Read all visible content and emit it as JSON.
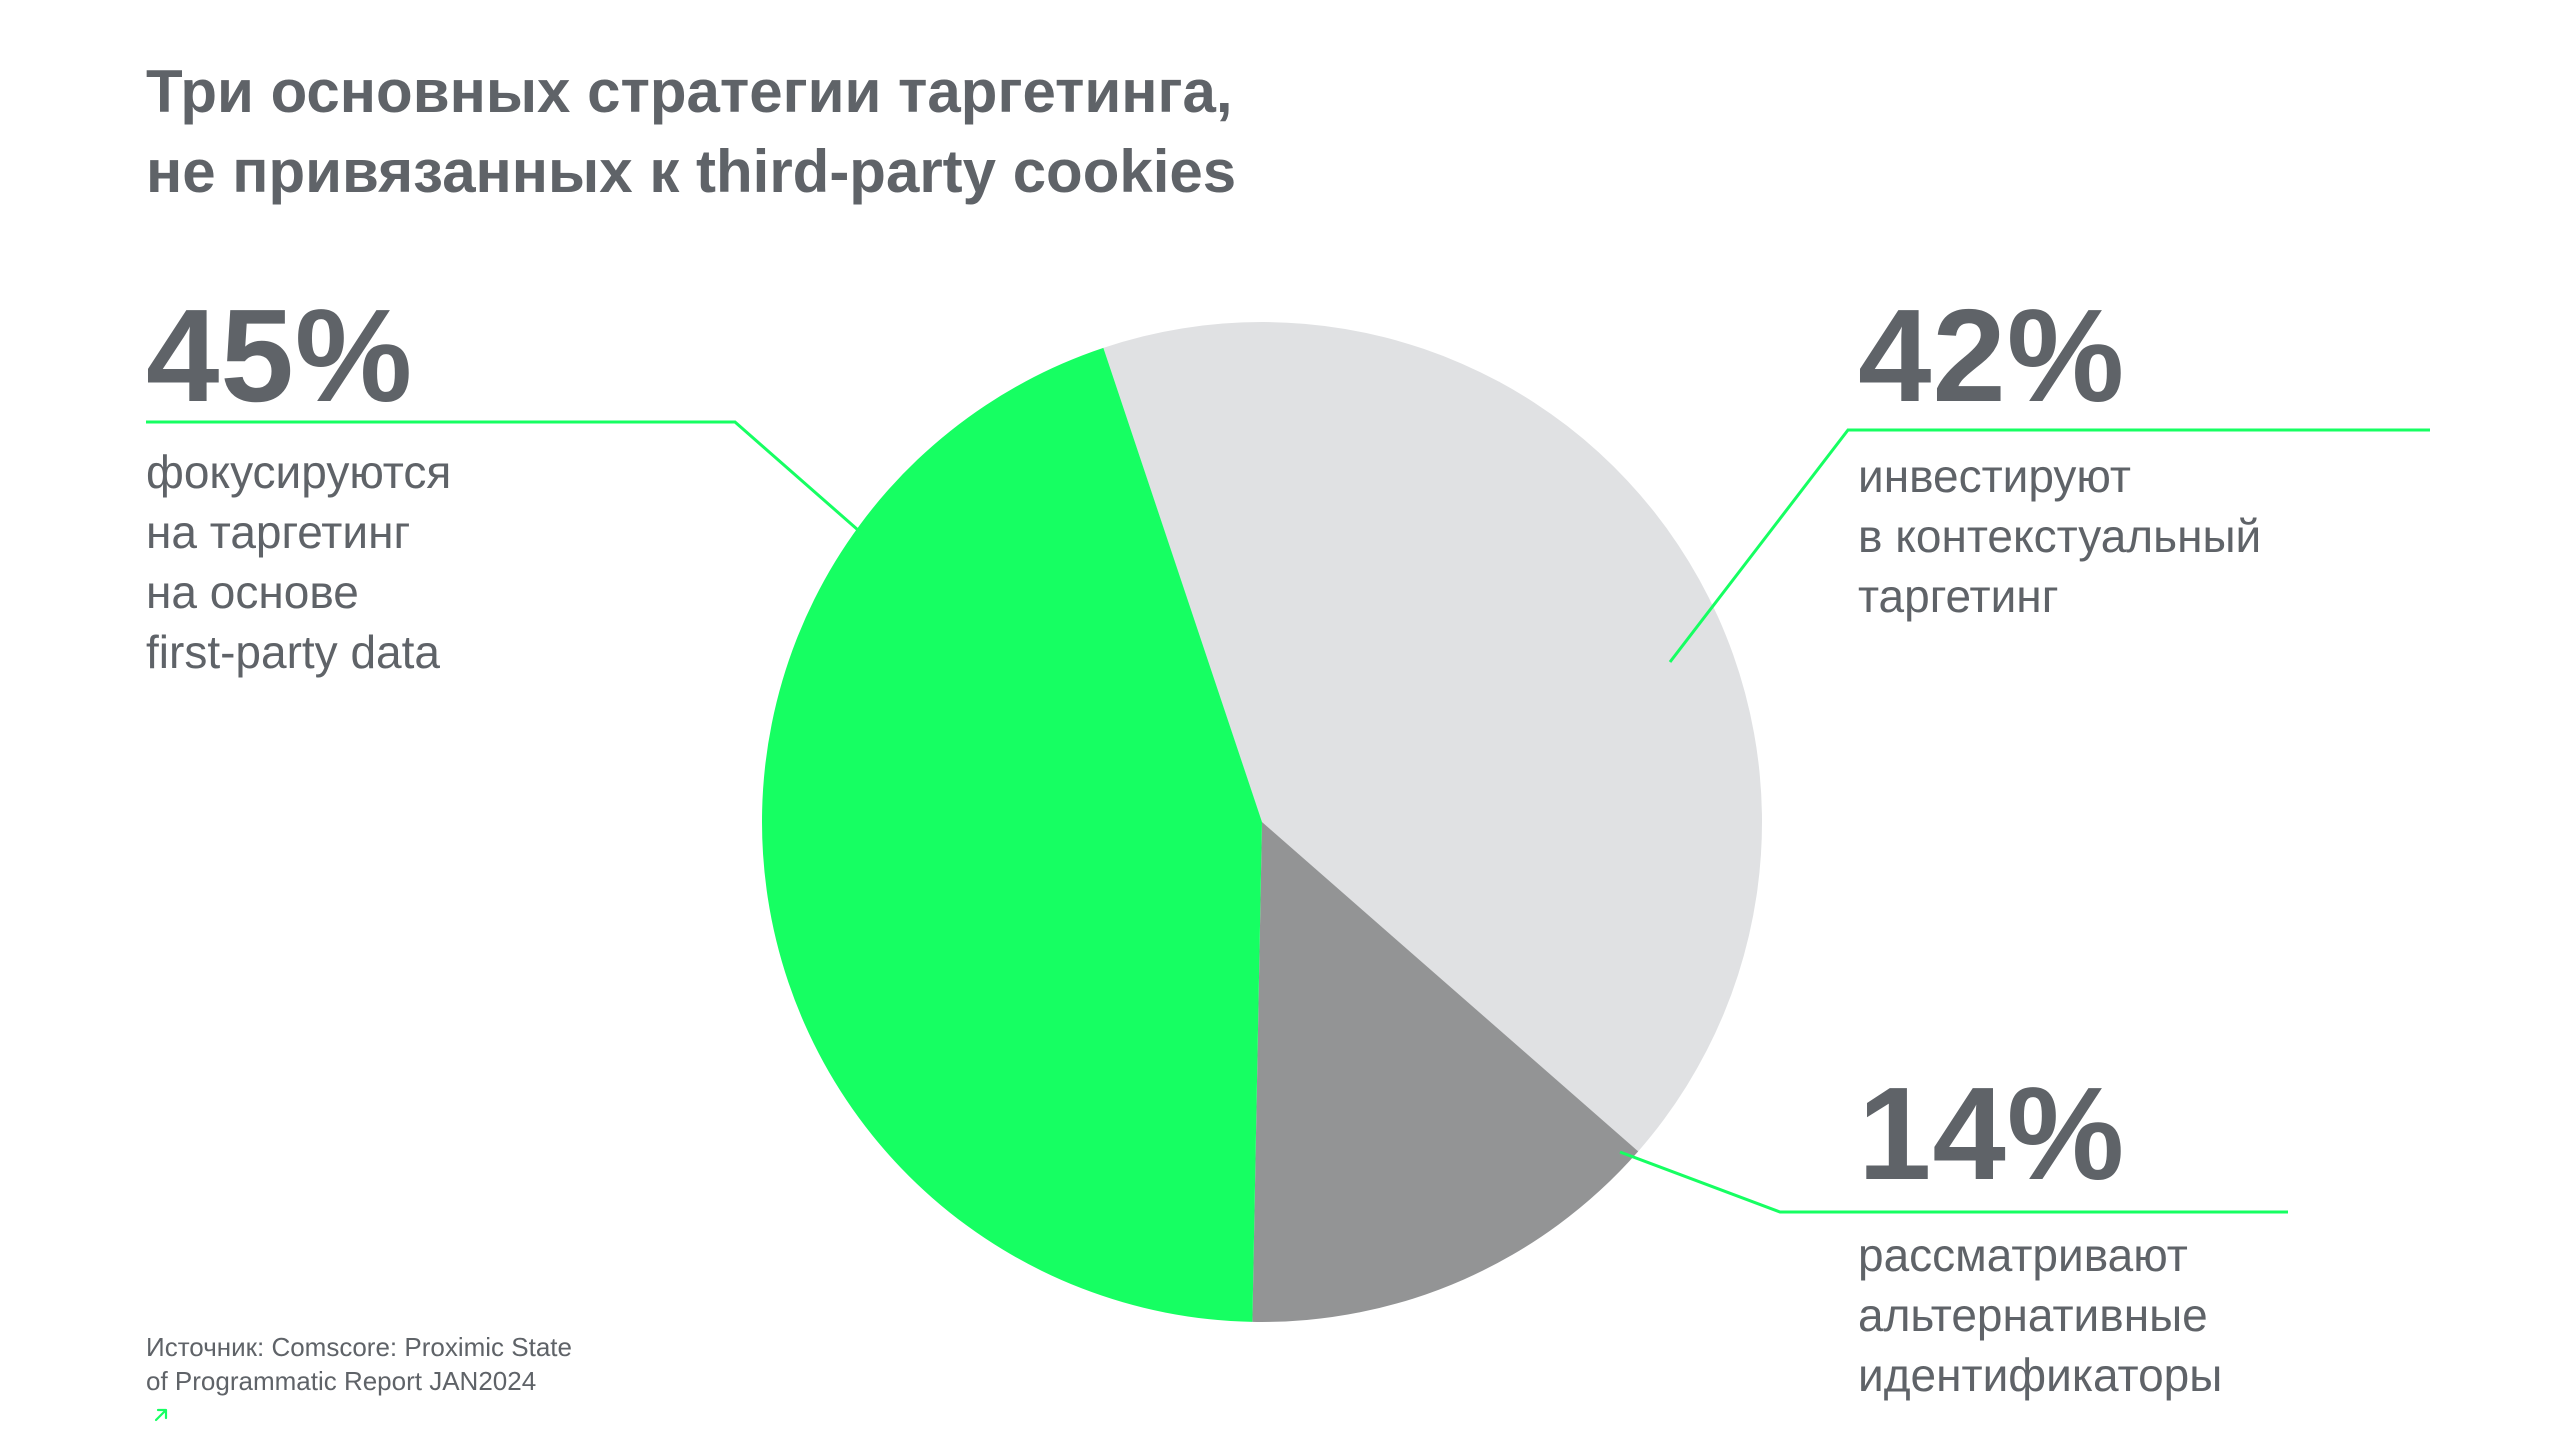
{
  "title": {
    "line1": "Три основных стратегии таргетинга,",
    "line2": "не привязанных к third-party cookies"
  },
  "chart_data": {
    "type": "pie",
    "title": "Три основных стратегии таргетинга, не привязанных к third-party cookies",
    "slices": [
      {
        "value": 45,
        "label": "45%",
        "description": [
          "фокусируются",
          "на таргетинг",
          "на основе",
          "first-party data"
        ],
        "color": "#16ff62"
      },
      {
        "value": 42,
        "label": "42%",
        "description": [
          "инвестируют",
          "в контекстуальный",
          "таргетинг"
        ],
        "color": "#e0e1e3"
      },
      {
        "value": 14,
        "label": "14%",
        "description": [
          "рассматривают",
          "альтернативные",
          "идентификаторы"
        ],
        "color": "#939495"
      }
    ]
  },
  "source": {
    "line1": "Источник: Comscore: Proximic State",
    "line2": "of Programmatic Report JAN2024",
    "icon": "arrow-up-right-icon"
  },
  "colors": {
    "accent": "#16ff62",
    "text": "#5f6368",
    "slice_light": "#e0e1e3",
    "slice_dark": "#939495"
  }
}
